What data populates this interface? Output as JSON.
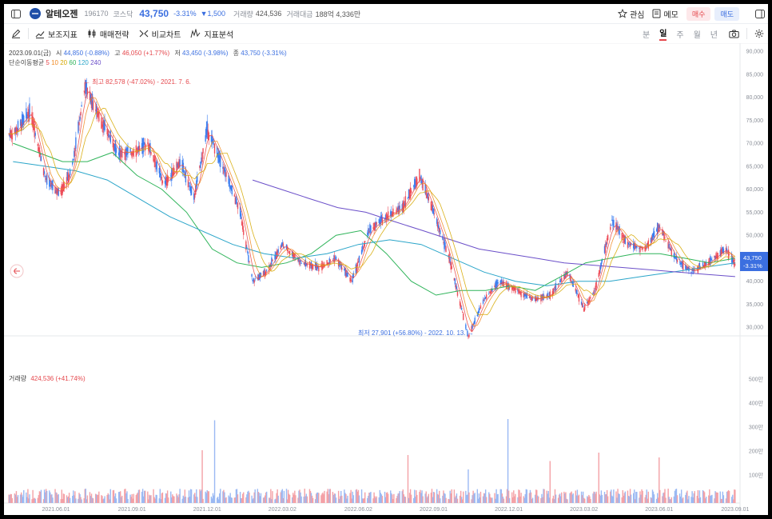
{
  "header": {
    "name": "알테오젠",
    "code": "196170",
    "market": "코스닥",
    "price": "43,750",
    "change_pct": "-3.31%",
    "change_amt": "▼1,500",
    "volume_label": "거래량",
    "volume": "424,536",
    "amount_label": "거래대금",
    "amount": "188억 4,336만",
    "watch_label": "관심",
    "memo_label": "메모",
    "buy_label": "매수",
    "sell_label": "매도"
  },
  "toolbar": {
    "aux_label": "보조지표",
    "trade_strategy_label": "매매전략",
    "compare_label": "비교차트",
    "indicator_analysis_label": "지표분석",
    "periods": [
      "분",
      "일",
      "주",
      "월",
      "년"
    ],
    "active_period": "일"
  },
  "chart_info": {
    "date": "2023.09.01(금)",
    "open_label": "시",
    "open": "44,850",
    "open_pct": "(-0.88%)",
    "high_label": "고",
    "high": "46,050",
    "high_pct": "(+1.77%)",
    "low_label": "저",
    "low": "43,450",
    "low_pct": "(-3.98%)",
    "close_label": "종",
    "close": "43,750",
    "close_pct": "(-3.31%)",
    "ma_label": "단순이동평균",
    "ma_periods": [
      "5",
      "10",
      "20",
      "60",
      "120",
      "240"
    ],
    "ma_colors": [
      "#e5484d",
      "#f08a24",
      "#d6a800",
      "#2fb45a",
      "#2aa5c9",
      "#6b4fc9"
    ],
    "max_annotation": "← 최고 82,578 (-47.02%) - 2021. 7. 6.",
    "min_annotation": "최저 27,901 (+56.80%) - 2022. 10. 13. →",
    "price_tag": "43,750",
    "price_tag_pct": "-3.31%",
    "volume_label": "거래량",
    "volume_value": "424,536 (+41.74%)"
  },
  "chart_data": [
    {
      "type": "candlestick",
      "x": [
        "2021.06.01",
        "2021.09.01",
        "2021.12.01",
        "2022.03.02",
        "2022.06.02",
        "2022.09.01",
        "2022.12.01",
        "2023.03.02",
        "2023.06.01",
        "2023.09.01"
      ],
      "series": [
        {
          "name": "종가",
          "x": [
            "2021-04-10",
            "2021-05-01",
            "2021-05-20",
            "2021-06-05",
            "2021-06-20",
            "2021-07-06",
            "2021-07-25",
            "2021-08-15",
            "2021-09-01",
            "2021-09-20",
            "2021-10-10",
            "2021-10-30",
            "2021-11-15",
            "2021-12-01",
            "2021-12-20",
            "2022-01-10",
            "2022-01-25",
            "2022-02-10",
            "2022-03-02",
            "2022-03-25",
            "2022-04-15",
            "2022-05-05",
            "2022-05-25",
            "2022-06-15",
            "2022-07-05",
            "2022-07-25",
            "2022-08-15",
            "2022-09-01",
            "2022-09-20",
            "2022-10-13",
            "2022-11-01",
            "2022-11-20",
            "2022-12-10",
            "2023-01-01",
            "2023-01-20",
            "2023-02-10",
            "2023-03-02",
            "2023-03-15",
            "2023-04-05",
            "2023-04-25",
            "2023-05-15",
            "2023-06-01",
            "2023-06-20",
            "2023-07-10",
            "2023-07-30",
            "2023-08-20",
            "2023-09-01"
          ],
          "values": [
            72000,
            77000,
            62000,
            59000,
            64000,
            82578,
            75000,
            68000,
            68000,
            70000,
            61000,
            66000,
            58000,
            73000,
            65000,
            55000,
            40000,
            42000,
            48000,
            44000,
            43000,
            45000,
            40000,
            51000,
            54000,
            56000,
            63000,
            55000,
            45000,
            27901,
            36000,
            40000,
            38000,
            36000,
            37000,
            42000,
            34000,
            38000,
            53000,
            48000,
            47000,
            52000,
            45000,
            42000,
            44000,
            47000,
            43750
          ]
        }
      ],
      "ylabel": "",
      "ylim": [
        20000,
        90000
      ],
      "y_ticks": [
        "90,000",
        "85,000",
        "80,000",
        "75,000",
        "70,000",
        "65,000",
        "60,000",
        "55,000",
        "50,000",
        "45,000",
        "40,000",
        "35,000",
        "30,000",
        "25,000"
      ],
      "moving_averages": [
        {
          "name": "60",
          "values": [
            70000,
            68000,
            66000,
            66000,
            68000,
            63000,
            60000,
            55000,
            47000,
            44000,
            43000,
            44000,
            46000,
            50000,
            51000,
            46000,
            40000,
            37000,
            38000,
            38000,
            39000,
            38000,
            41000,
            44000,
            45000,
            46000,
            46000,
            45000,
            44000,
            45000
          ]
        },
        {
          "name": "120",
          "values": [
            66000,
            65000,
            64000,
            62000,
            58000,
            54000,
            51000,
            48000,
            46000,
            45000,
            46000,
            48000,
            49000,
            48000,
            45000,
            42000,
            40000,
            39000,
            40000,
            40000,
            41000,
            42000,
            43000,
            44000
          ]
        },
        {
          "name": "240",
          "values": [
            62000,
            60000,
            58000,
            56000,
            55000,
            53000,
            51000,
            49000,
            47000,
            46000,
            45000,
            44000,
            43500,
            43000,
            42500,
            42000,
            41500,
            41000
          ]
        }
      ]
    },
    {
      "type": "bar",
      "title": "거래량",
      "y_ticks": [
        "500만",
        "400만",
        "300만",
        "200만",
        "100만"
      ],
      "ylim": [
        0,
        5000000
      ],
      "spikes": [
        {
          "x": "2021-12-10",
          "value": 3450000,
          "dir": "dn"
        },
        {
          "x": "2021-11-25",
          "value": 2200000,
          "dir": "up"
        },
        {
          "x": "2022-08-01",
          "value": 2000000,
          "dir": "up"
        },
        {
          "x": "2022-10-13",
          "value": 1400000,
          "dir": "dn"
        },
        {
          "x": "2022-11-30",
          "value": 3500000,
          "dir": "dn"
        },
        {
          "x": "2023-01-20",
          "value": 1750000,
          "dir": "up"
        },
        {
          "x": "2023-03-25",
          "value": 4600000,
          "dir": "up"
        },
        {
          "x": "2023-03-20",
          "value": 2100000,
          "dir": "up"
        },
        {
          "x": "2023-06-01",
          "value": 1900000,
          "dir": "up"
        }
      ]
    }
  ]
}
